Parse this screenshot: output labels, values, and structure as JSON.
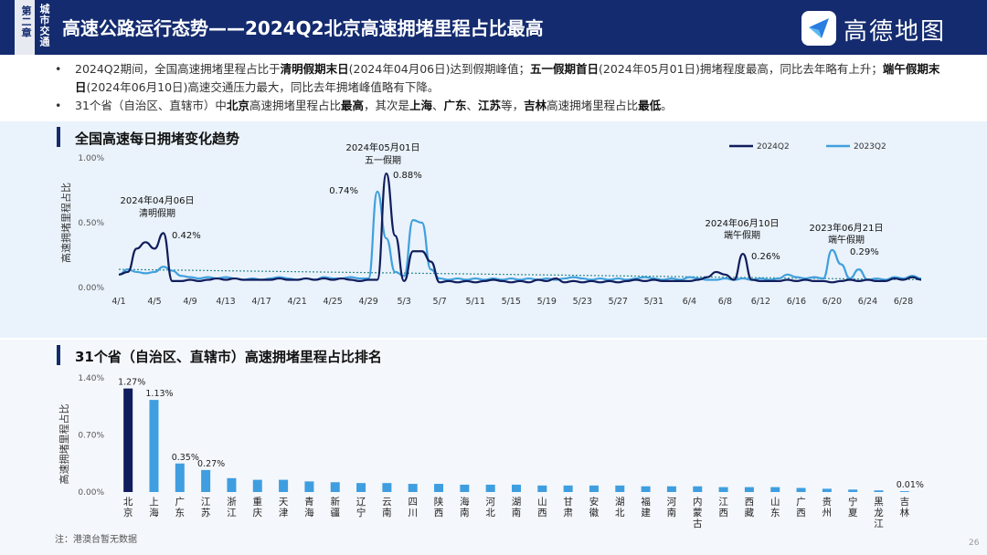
{
  "header": {
    "chapter_label": "第二章",
    "chapter_name": "城市交通",
    "title": "高速公路运行态势——2024Q2北京高速拥堵里程占比最高",
    "logo_text": "高德地图"
  },
  "bullets": [
    [
      {
        "t": "2024Q2期间，全国高速拥堵里程占比于",
        "b": false
      },
      {
        "t": "清明假期末日",
        "b": true
      },
      {
        "t": "(2024年04月06日)达到假期峰值；",
        "b": false
      },
      {
        "t": "五一假期首日",
        "b": true
      },
      {
        "t": "(2024年05月01日)拥堵程度最高，同比去年略有上升；",
        "b": false
      },
      {
        "t": "端午假期末日",
        "b": true
      },
      {
        "t": "(2024年06月10日)高速交通压力最大，同比去年拥堵峰值略有下降。",
        "b": false
      }
    ],
    [
      {
        "t": "31个省（自治区、直辖市）中",
        "b": false
      },
      {
        "t": "北京",
        "b": true
      },
      {
        "t": "高速拥堵里程占比",
        "b": false
      },
      {
        "t": "最高",
        "b": true
      },
      {
        "t": "，其次是",
        "b": false
      },
      {
        "t": "上海",
        "b": true
      },
      {
        "t": "、",
        "b": false
      },
      {
        "t": "广东",
        "b": true
      },
      {
        "t": "、",
        "b": false
      },
      {
        "t": "江苏",
        "b": true
      },
      {
        "t": "等，",
        "b": false
      },
      {
        "t": "吉林",
        "b": true
      },
      {
        "t": "高速拥堵里程占比",
        "b": false
      },
      {
        "t": "最低",
        "b": true
      },
      {
        "t": "。",
        "b": false
      }
    ]
  ],
  "section1_title": "全国高速每日拥堵变化趋势",
  "section2_title": "31个省（自治区、直辖市）高速拥堵里程占比排名",
  "note": "注：港澳台暂无数据",
  "page_number": "26",
  "colors": {
    "series_2024": "#0f1d5c",
    "series_2023": "#3fa0dd",
    "bar_main": "#3f9ee0",
    "bar_top": "#101c5e",
    "trend": "#2a8a8f"
  },
  "chart_data": [
    {
      "type": "line",
      "title": "全国高速每日拥堵变化趋势",
      "ylabel": "高速拥堵里程占比",
      "ylim": [
        0,
        1.0
      ],
      "yticks": [
        "0.00%",
        "0.50%",
        "1.00%"
      ],
      "xticks": [
        "4/1",
        "4/5",
        "4/9",
        "4/13",
        "4/17",
        "4/21",
        "4/25",
        "4/29",
        "5/3",
        "5/7",
        "5/11",
        "5/15",
        "5/19",
        "5/23",
        "5/27",
        "5/31",
        "6/4",
        "6/8",
        "6/12",
        "6/16",
        "6/20",
        "6/24",
        "6/28"
      ],
      "legend": "top-right",
      "series": [
        {
          "name": "2024Q2",
          "values": [
            0.1,
            0.12,
            0.3,
            0.35,
            0.3,
            0.42,
            0.05,
            0.05,
            0.06,
            0.05,
            0.06,
            0.07,
            0.06,
            0.07,
            0.06,
            0.06,
            0.06,
            0.06,
            0.07,
            0.06,
            0.06,
            0.07,
            0.06,
            0.07,
            0.06,
            0.07,
            0.06,
            0.05,
            0.06,
            0.06,
            0.88,
            0.4,
            0.05,
            0.28,
            0.28,
            0.2,
            0.04,
            0.05,
            0.04,
            0.05,
            0.04,
            0.05,
            0.06,
            0.05,
            0.04,
            0.05,
            0.04,
            0.06,
            0.05,
            0.07,
            0.04,
            0.05,
            0.04,
            0.05,
            0.04,
            0.05,
            0.04,
            0.05,
            0.06,
            0.05,
            0.06,
            0.05,
            0.05,
            0.05,
            0.05,
            0.06,
            0.08,
            0.12,
            0.1,
            0.06,
            0.26,
            0.06,
            0.05,
            0.05,
            0.05,
            0.06,
            0.05,
            0.06,
            0.05,
            0.05,
            0.04,
            0.05,
            0.06,
            0.05,
            0.06,
            0.05,
            0.05,
            0.07,
            0.06,
            0.08,
            0.06
          ]
        },
        {
          "name": "2023Q2",
          "values": [
            0.1,
            0.14,
            0.12,
            0.11,
            0.12,
            0.16,
            0.13,
            0.09,
            0.08,
            0.07,
            0.08,
            0.07,
            0.08,
            0.07,
            0.06,
            0.07,
            0.06,
            0.07,
            0.08,
            0.07,
            0.06,
            0.07,
            0.06,
            0.08,
            0.07,
            0.07,
            0.08,
            0.07,
            0.07,
            0.74,
            0.38,
            0.12,
            0.09,
            0.52,
            0.5,
            0.14,
            0.07,
            0.06,
            0.07,
            0.06,
            0.07,
            0.06,
            0.07,
            0.06,
            0.07,
            0.06,
            0.07,
            0.06,
            0.07,
            0.06,
            0.07,
            0.08,
            0.07,
            0.06,
            0.07,
            0.06,
            0.07,
            0.06,
            0.07,
            0.08,
            0.07,
            0.06,
            0.07,
            0.06,
            0.08,
            0.07,
            0.06,
            0.06,
            0.07,
            0.06,
            0.07,
            0.06,
            0.07,
            0.06,
            0.07,
            0.1,
            0.08,
            0.07,
            0.08,
            0.07,
            0.29,
            0.18,
            0.07,
            0.14,
            0.06,
            0.07,
            0.06,
            0.08,
            0.07,
            0.09,
            0.07
          ]
        }
      ],
      "annotations": [
        {
          "date": "2024年04月06日",
          "event": "清明假期",
          "value": "0.42%"
        },
        {
          "date": "2024年05月01日",
          "event": "五一假期",
          "value": "0.88%"
        },
        {
          "date": "",
          "event": "",
          "value": "0.74%"
        },
        {
          "date": "2024年06月10日",
          "event": "端午假期",
          "value": "0.26%"
        },
        {
          "date": "2023年06月21日",
          "event": "端午假期",
          "value": "0.29%"
        }
      ]
    },
    {
      "type": "bar",
      "title": "31个省（自治区、直辖市）高速拥堵里程占比排名",
      "ylabel": "高速拥堵里程占比",
      "ylim": [
        0,
        1.4
      ],
      "yticks": [
        "0.00%",
        "0.70%",
        "1.40%"
      ],
      "categories": [
        "北京",
        "上海",
        "广东",
        "江苏",
        "浙江",
        "重庆",
        "天津",
        "青海",
        "新疆",
        "辽宁",
        "云南",
        "四川",
        "陕西",
        "海南",
        "河北",
        "湖南",
        "山西",
        "甘肃",
        "安徽",
        "湖北",
        "福建",
        "河南",
        "内蒙古",
        "江西",
        "西藏",
        "山东",
        "广西",
        "贵州",
        "宁夏",
        "黑龙江",
        "吉林"
      ],
      "values": [
        1.27,
        1.13,
        0.35,
        0.27,
        0.17,
        0.15,
        0.15,
        0.13,
        0.12,
        0.11,
        0.11,
        0.1,
        0.1,
        0.09,
        0.09,
        0.09,
        0.08,
        0.08,
        0.08,
        0.08,
        0.07,
        0.07,
        0.07,
        0.06,
        0.06,
        0.06,
        0.05,
        0.04,
        0.03,
        0.02,
        0.01
      ],
      "data_labels": {
        "0": "1.27%",
        "1": "1.13%",
        "2": "0.35%",
        "3": "0.27%",
        "30": "0.01%"
      }
    }
  ]
}
